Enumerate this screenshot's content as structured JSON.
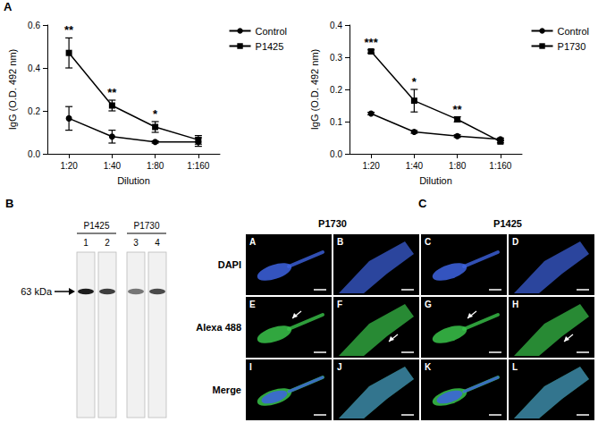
{
  "chart_data": [
    {
      "type": "line",
      "x_label": "Dilution",
      "y_label": "IgG (O.D. 492 nm)",
      "categories": [
        "1:20",
        "1:40",
        "1:80",
        "1:160"
      ],
      "series": [
        {
          "name": "Control",
          "color": "#000000",
          "marker": "circle",
          "values": [
            0.165,
            0.08,
            0.055,
            0.055
          ],
          "errors": [
            0.055,
            0.03,
            0.005,
            0.02
          ]
        },
        {
          "name": "P1425",
          "color": "#000000",
          "marker": "square",
          "values": [
            0.47,
            0.225,
            0.125,
            0.065
          ],
          "errors": [
            0.07,
            0.025,
            0.025,
            0.02
          ]
        }
      ],
      "ylim": [
        0,
        0.6
      ],
      "yticks": [
        {
          "value": 0,
          "label": "0.0"
        },
        0.2,
        0.4,
        0.6
      ],
      "grid": false,
      "legend": "upper right",
      "annotations": [
        {
          "category": "1:20",
          "text": "**"
        },
        {
          "category": "1:40",
          "text": "**"
        },
        {
          "category": "1:80",
          "text": "*"
        }
      ]
    },
    {
      "type": "line",
      "x_label": "Dilution",
      "y_label": "IgG (O.D. 492 nm)",
      "categories": [
        "1:20",
        "1:40",
        "1:80",
        "1:160"
      ],
      "series": [
        {
          "name": "Control",
          "color": "#000000",
          "marker": "circle",
          "values": [
            0.125,
            0.068,
            0.055,
            0.045
          ],
          "errors": [
            0.004,
            0.004,
            0.004,
            0.004
          ]
        },
        {
          "name": "P1730",
          "color": "#000000",
          "marker": "square",
          "values": [
            0.318,
            0.165,
            0.107,
            0.038
          ],
          "errors": [
            0.005,
            0.035,
            0.008,
            0.004
          ]
        }
      ],
      "ylim": [
        0,
        0.4
      ],
      "yticks": [
        {
          "value": 0,
          "label": "0.0"
        },
        0.1,
        0.2,
        0.3,
        0.4
      ],
      "grid": false,
      "legend": "upper right",
      "annotations": [
        {
          "category": "1:20",
          "text": "***"
        },
        {
          "category": "1:40",
          "text": "*"
        },
        {
          "category": "1:80",
          "text": "**"
        }
      ]
    }
  ],
  "figure": {
    "panel_labels": [
      "A",
      "B",
      "C"
    ],
    "blot": {
      "groups": [
        {
          "name": "P1425",
          "lanes": [
            "1",
            "2"
          ]
        },
        {
          "name": "P1730",
          "lanes": [
            "3",
            "4"
          ]
        }
      ],
      "band_label": "63 kDa"
    },
    "microscopy": {
      "groups": [
        "P1730",
        "P1425"
      ],
      "rows": [
        "DAPI",
        "Alexa 488",
        "Merge"
      ],
      "cells": [
        [
          "A",
          "B",
          "C",
          "D"
        ],
        [
          "E",
          "F",
          "G",
          "H"
        ],
        [
          "I",
          "J",
          "K",
          "L"
        ]
      ]
    }
  }
}
